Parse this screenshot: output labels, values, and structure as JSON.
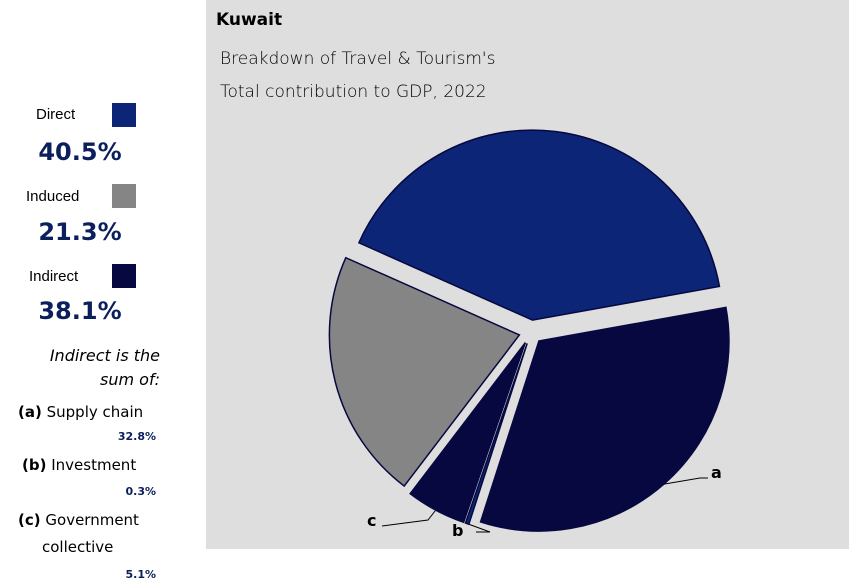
{
  "chart_data": {
    "type": "pie",
    "title": "Kuwait",
    "subtitle_lines": [
      "Breakdown of Travel & Tourism's",
      "Total contribution to GDP, 2022"
    ],
    "slices": [
      {
        "label": "Direct",
        "value": 40.5,
        "color": "#0c2577"
      },
      {
        "label": "a",
        "value": 32.8,
        "color": "#06083f"
      },
      {
        "label": "b",
        "value": 0.3,
        "color": "#0c2577"
      },
      {
        "label": "c",
        "value": 5.1,
        "color": "#06083f"
      },
      {
        "label": "Induced",
        "value": 21.3,
        "color": "#858585"
      }
    ]
  },
  "legend": [
    {
      "label": "Direct",
      "value": "40.5%",
      "color": "#0c2577"
    },
    {
      "label": "Induced",
      "value": "21.3%",
      "color": "#858585"
    },
    {
      "label": "Indirect",
      "value": "38.1%",
      "color": "#06083f"
    }
  ],
  "note": {
    "line1": "Indirect is the",
    "line2": "sum of:"
  },
  "components": [
    {
      "key": "(a)",
      "label": "Supply chain",
      "value": "32.8%"
    },
    {
      "key": "(b)",
      "label": "Investment",
      "value": "0.3%"
    },
    {
      "key": "(c)",
      "label": "Government",
      "label2": "collective",
      "value": "5.1%"
    }
  ]
}
